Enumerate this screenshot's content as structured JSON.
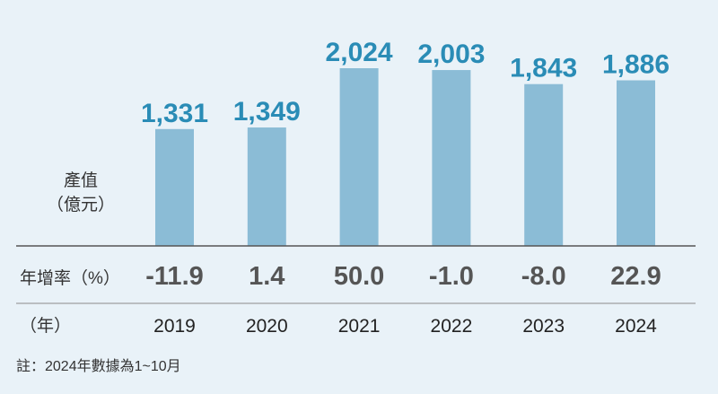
{
  "chart_data": {
    "type": "bar",
    "ylabel": [
      "產值",
      "（億元）"
    ],
    "categories": [
      "2019",
      "2020",
      "2021",
      "2022",
      "2023",
      "2024"
    ],
    "values": [
      1331,
      1349,
      2024,
      2003,
      1843,
      1886
    ],
    "value_labels": [
      "1,331",
      "1,349",
      "2,024",
      "2,003",
      "1,843",
      "1,886"
    ],
    "growth_label": "年增率（%）",
    "growth": [
      "-11.9",
      "1.4",
      "50.0",
      "-1.0",
      "-8.0",
      "22.9"
    ],
    "year_label": "（年）",
    "note": "註：2024年數據為1~10月",
    "ylim": [
      0,
      2024
    ],
    "grid": false,
    "colors": {
      "bar": "#8bbcd6",
      "value": "#2a8cb6",
      "growth": "#555555",
      "background": "#e9f2f8",
      "line": "#555555"
    }
  }
}
